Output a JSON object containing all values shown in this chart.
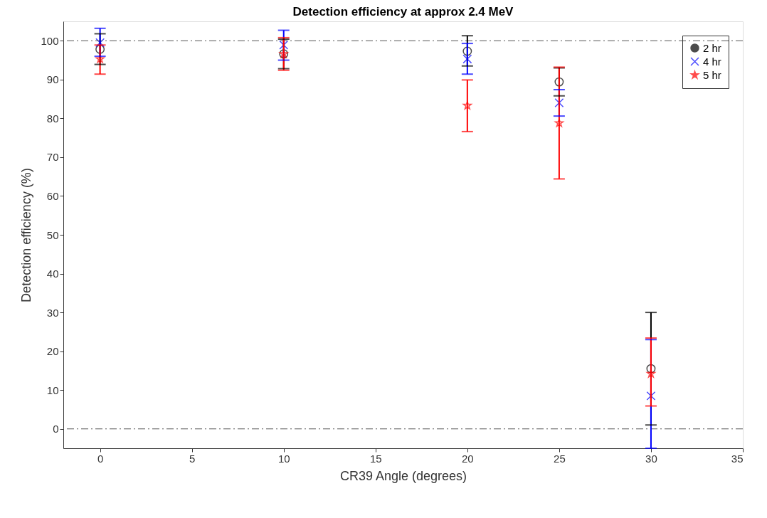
{
  "chart_data": {
    "type": "scatter",
    "title": "Detection efficiency at approx 2.4 MeV",
    "xlabel": "CR39 Angle (degrees)",
    "ylabel": "Detection efficiency (%)",
    "x": [
      0,
      10,
      20,
      25,
      30
    ],
    "series": [
      {
        "name": "2 hr",
        "color": "#000000",
        "marker": "circle",
        "values": [
          97.8,
          96.6,
          97.3,
          89.4,
          15.5
        ],
        "errors": [
          [
            93.9,
            101.8
          ],
          [
            92.8,
            100.4
          ],
          [
            93.5,
            101.3
          ],
          [
            85.8,
            93.0
          ],
          [
            1.0,
            30.0
          ]
        ]
      },
      {
        "name": "4 hr",
        "color": "#0000ff",
        "marker": "cross",
        "values": [
          99.5,
          98.9,
          95.3,
          84.0,
          8.5
        ],
        "errors": [
          [
            96.0,
            103.2
          ],
          [
            95.0,
            102.7
          ],
          [
            91.4,
            99.3
          ],
          [
            80.6,
            87.4
          ],
          [
            -5,
            23.0
          ]
        ]
      },
      {
        "name": "5 hr",
        "color": "#ff0000",
        "marker": "star",
        "values": [
          95.3,
          96.6,
          83.3,
          78.8,
          14.2
        ],
        "errors": [
          [
            91.4,
            98.9
          ],
          [
            92.4,
            100.8
          ],
          [
            76.6,
            89.9
          ],
          [
            64.4,
            93.2
          ],
          [
            5.9,
            23.4
          ]
        ]
      }
    ],
    "xlim": [
      -2,
      35
    ],
    "xticks": [
      0,
      5,
      10,
      15,
      20,
      25,
      30,
      35
    ],
    "ylim": [
      -5,
      105
    ],
    "yticks": [
      0,
      10,
      20,
      30,
      40,
      50,
      60,
      70,
      80,
      90,
      100
    ],
    "ref_lines": [
      {
        "axis": "y",
        "value": 0,
        "color": "#555555",
        "line_style": "dashdot"
      },
      {
        "axis": "y",
        "value": 100,
        "color": "#555555",
        "line_style": "dashdot"
      }
    ],
    "grid": false,
    "legend": "top right"
  }
}
